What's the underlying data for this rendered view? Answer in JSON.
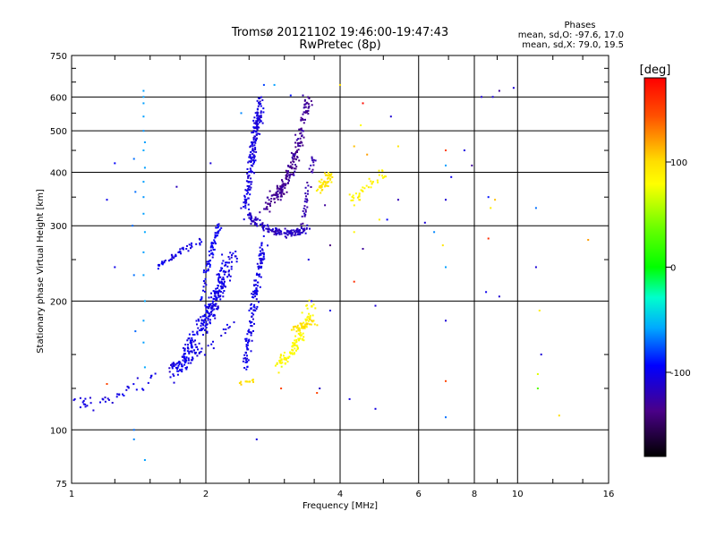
{
  "chart_data": {
    "type": "scatter",
    "title": "Tromsø 20121102 19:46:00-19:47:43",
    "subtitle": "RwPretec (8p)",
    "xlabel": "Frequency [MHz]",
    "ylabel": "Stationary phase Virtual Height [km]",
    "x_scale": "log",
    "y_scale": "log",
    "xlim": [
      1,
      16
    ],
    "ylim": [
      75,
      750
    ],
    "x_ticks": [
      1,
      2,
      4,
      6,
      8,
      10,
      16
    ],
    "x_tick_labels": [
      "1",
      "2",
      "4",
      "6",
      "8",
      "10",
      "16"
    ],
    "y_ticks": [
      75,
      100,
      200,
      300,
      400,
      500,
      600,
      750
    ],
    "y_tick_labels": [
      "75",
      "100",
      "200",
      "300",
      "400",
      "500",
      "600",
      "750"
    ],
    "grid": true,
    "stats": {
      "heading": "Phases",
      "line_o": "mean, sd,O: -97.6, 17.0",
      "line_x": "mean, sd,X:  79.0, 19.5"
    },
    "colorbar": {
      "label": "[deg]",
      "range": [
        -180,
        180
      ],
      "ticks": [
        100,
        0,
        -100
      ],
      "tick_labels": [
        "100",
        "0",
        "-100"
      ]
    },
    "traces": [
      {
        "f": [
          1.0,
          1.05,
          1.1,
          1.2,
          1.3,
          1.4,
          1.5,
          1.6,
          1.7,
          1.8,
          1.9,
          2.0,
          2.1,
          2.2,
          2.3
        ],
        "h": [
          116,
          115,
          116,
          117,
          120,
          125,
          130,
          135,
          140,
          145,
          150,
          155,
          160,
          168,
          180
        ],
        "n": 90,
        "sf": 0.03,
        "sh": 0.06,
        "phase": -105
      },
      {
        "f": [
          1.7,
          1.8,
          1.9,
          2.0,
          2.05,
          2.1,
          2.15,
          2.2,
          2.3
        ],
        "h": [
          135,
          150,
          165,
          180,
          190,
          200,
          215,
          230,
          255
        ],
        "n": 300,
        "sf": 0.05,
        "sh": 0.08,
        "phase": -102
      },
      {
        "f": [
          1.95,
          2.0,
          2.05,
          2.1,
          2.15
        ],
        "h": [
          200,
          230,
          260,
          285,
          300
        ],
        "n": 70,
        "sf": 0.02,
        "sh": 0.05,
        "phase": -100
      },
      {
        "f": [
          1.55,
          1.65,
          1.75,
          1.85,
          1.95
        ],
        "h": [
          240,
          250,
          260,
          268,
          275
        ],
        "n": 50,
        "sf": 0.015,
        "sh": 0.025,
        "phase": -102
      },
      {
        "f": [
          2.45,
          2.5,
          2.55,
          2.6,
          2.65,
          2.7
        ],
        "h": [
          140,
          165,
          190,
          220,
          245,
          270
        ],
        "n": 150,
        "sf": 0.025,
        "sh": 0.08,
        "phase": -103
      },
      {
        "f": [
          2.45,
          2.5,
          2.55,
          2.6,
          2.65
        ],
        "h": [
          330,
          380,
          440,
          510,
          580
        ],
        "n": 190,
        "sf": 0.025,
        "sh": 0.08,
        "phase": -106
      },
      {
        "f": [
          2.5,
          2.6,
          2.8,
          3.0,
          3.2,
          3.4
        ],
        "h": [
          320,
          305,
          292,
          288,
          290,
          295
        ],
        "n": 140,
        "sf": 0.035,
        "sh": 0.03,
        "phase": -115
      },
      {
        "f": [
          2.7,
          2.9,
          3.0,
          3.1,
          3.2,
          3.3,
          3.4
        ],
        "h": [
          330,
          355,
          375,
          400,
          450,
          520,
          600
        ],
        "n": 210,
        "sf": 0.035,
        "sh": 0.06,
        "phase": -132
      },
      {
        "f": [
          3.3,
          3.35,
          3.4,
          3.5
        ],
        "h": [
          300,
          340,
          380,
          440
        ],
        "n": 40,
        "sf": 0.02,
        "sh": 0.06,
        "phase": -125
      },
      {
        "f": [
          3.6,
          3.7,
          3.8
        ],
        "h": [
          360,
          380,
          395
        ],
        "n": 50,
        "sf": 0.03,
        "sh": 0.04,
        "phase": 95
      },
      {
        "f": [
          4.2,
          4.4,
          4.6,
          4.8,
          5.0
        ],
        "h": [
          340,
          355,
          370,
          385,
          400
        ],
        "n": 40,
        "sf": 0.035,
        "sh": 0.04,
        "phase": 88
      },
      {
        "f": [
          2.4,
          2.5,
          2.6
        ],
        "h": [
          128,
          130,
          131
        ],
        "n": 14,
        "sf": 0.02,
        "sh": 0.015,
        "phase": 95
      },
      {
        "f": [
          2.9,
          3.0,
          3.1,
          3.2,
          3.3,
          3.4,
          3.5
        ],
        "h": [
          140,
          145,
          150,
          160,
          170,
          185,
          200
        ],
        "n": 110,
        "sf": 0.03,
        "sh": 0.06,
        "phase": 82
      },
      {
        "f": [
          3.1,
          3.3,
          3.5
        ],
        "h": [
          170,
          175,
          180
        ],
        "n": 35,
        "sf": 0.03,
        "sh": 0.04,
        "phase": 98
      }
    ],
    "points": [
      {
        "f": 1.45,
        "h": 620,
        "phase": -60
      },
      {
        "f": 1.45,
        "h": 600,
        "phase": -60
      },
      {
        "f": 1.45,
        "h": 580,
        "phase": -60
      },
      {
        "f": 1.45,
        "h": 540,
        "phase": -60
      },
      {
        "f": 1.45,
        "h": 500,
        "phase": -62
      },
      {
        "f": 1.46,
        "h": 470,
        "phase": -60
      },
      {
        "f": 1.45,
        "h": 450,
        "phase": -58
      },
      {
        "f": 1.46,
        "h": 410,
        "phase": -60
      },
      {
        "f": 1.45,
        "h": 380,
        "phase": -60
      },
      {
        "f": 1.45,
        "h": 350,
        "phase": -62
      },
      {
        "f": 1.45,
        "h": 320,
        "phase": -60
      },
      {
        "f": 1.46,
        "h": 290,
        "phase": -58
      },
      {
        "f": 1.45,
        "h": 260,
        "phase": -60
      },
      {
        "f": 1.45,
        "h": 230,
        "phase": -60
      },
      {
        "f": 1.46,
        "h": 200,
        "phase": -58
      },
      {
        "f": 1.45,
        "h": 180,
        "phase": -60
      },
      {
        "f": 1.45,
        "h": 160,
        "phase": -60
      },
      {
        "f": 1.46,
        "h": 140,
        "phase": -58
      },
      {
        "f": 1.46,
        "h": 85,
        "phase": -60
      },
      {
        "f": 1.38,
        "h": 430,
        "phase": -70
      },
      {
        "f": 1.39,
        "h": 360,
        "phase": -70
      },
      {
        "f": 1.37,
        "h": 300,
        "phase": -72
      },
      {
        "f": 1.38,
        "h": 230,
        "phase": -70
      },
      {
        "f": 1.39,
        "h": 170,
        "phase": -72
      },
      {
        "f": 1.38,
        "h": 100,
        "phase": -70
      },
      {
        "f": 1.38,
        "h": 95,
        "phase": -65
      },
      {
        "f": 1.25,
        "h": 420,
        "phase": -95
      },
      {
        "f": 1.25,
        "h": 240,
        "phase": -102
      },
      {
        "f": 1.2,
        "h": 345,
        "phase": -100
      },
      {
        "f": 1.72,
        "h": 370,
        "phase": -118
      },
      {
        "f": 2.05,
        "h": 420,
        "phase": -108
      },
      {
        "f": 2.4,
        "h": 550,
        "phase": -65
      },
      {
        "f": 2.7,
        "h": 640,
        "phase": -80
      },
      {
        "f": 2.85,
        "h": 640,
        "phase": -60
      },
      {
        "f": 3.1,
        "h": 605,
        "phase": -90
      },
      {
        "f": 3.4,
        "h": 250,
        "phase": -106
      },
      {
        "f": 3.45,
        "h": 200,
        "phase": -100
      },
      {
        "f": 2.6,
        "h": 95,
        "phase": -104
      },
      {
        "f": 1.2,
        "h": 128,
        "phase": 150
      },
      {
        "f": 2.95,
        "h": 125,
        "phase": 150
      },
      {
        "f": 3.55,
        "h": 122,
        "phase": 150
      },
      {
        "f": 4.0,
        "h": 640,
        "phase": 100
      },
      {
        "f": 4.3,
        "h": 460,
        "phase": 110
      },
      {
        "f": 4.5,
        "h": 580,
        "phase": 175
      },
      {
        "f": 4.45,
        "h": 515,
        "phase": 80
      },
      {
        "f": 4.6,
        "h": 440,
        "phase": 120
      },
      {
        "f": 4.3,
        "h": 290,
        "phase": 85
      },
      {
        "f": 4.3,
        "h": 222,
        "phase": 160
      },
      {
        "f": 4.5,
        "h": 265,
        "phase": -130
      },
      {
        "f": 4.9,
        "h": 310,
        "phase": 90
      },
      {
        "f": 5.2,
        "h": 540,
        "phase": -110
      },
      {
        "f": 5.4,
        "h": 460,
        "phase": 95
      },
      {
        "f": 5.4,
        "h": 345,
        "phase": -120
      },
      {
        "f": 5.1,
        "h": 310,
        "phase": -95
      },
      {
        "f": 4.2,
        "h": 118,
        "phase": -105
      },
      {
        "f": 4.8,
        "h": 112,
        "phase": -105
      },
      {
        "f": 4.8,
        "h": 195,
        "phase": -110
      },
      {
        "f": 3.8,
        "h": 190,
        "phase": -105
      },
      {
        "f": 3.6,
        "h": 125,
        "phase": -115
      },
      {
        "f": 3.8,
        "h": 270,
        "phase": -140
      },
      {
        "f": 3.7,
        "h": 335,
        "phase": -130
      },
      {
        "f": 6.2,
        "h": 305,
        "phase": -108
      },
      {
        "f": 6.5,
        "h": 290,
        "phase": -65
      },
      {
        "f": 6.8,
        "h": 270,
        "phase": 95
      },
      {
        "f": 6.9,
        "h": 450,
        "phase": 150
      },
      {
        "f": 6.9,
        "h": 415,
        "phase": -60
      },
      {
        "f": 6.9,
        "h": 345,
        "phase": -110
      },
      {
        "f": 7.1,
        "h": 390,
        "phase": -100
      },
      {
        "f": 6.9,
        "h": 240,
        "phase": -60
      },
      {
        "f": 6.9,
        "h": 180,
        "phase": -108
      },
      {
        "f": 6.9,
        "h": 130,
        "phase": 150
      },
      {
        "f": 6.9,
        "h": 107,
        "phase": -70
      },
      {
        "f": 7.6,
        "h": 450,
        "phase": -105
      },
      {
        "f": 7.9,
        "h": 415,
        "phase": -130
      },
      {
        "f": 8.3,
        "h": 600,
        "phase": -110
      },
      {
        "f": 8.8,
        "h": 600,
        "phase": -108
      },
      {
        "f": 9.1,
        "h": 620,
        "phase": -130
      },
      {
        "f": 9.8,
        "h": 630,
        "phase": -110
      },
      {
        "f": 8.6,
        "h": 350,
        "phase": -90
      },
      {
        "f": 8.9,
        "h": 345,
        "phase": 110
      },
      {
        "f": 8.7,
        "h": 330,
        "phase": 90
      },
      {
        "f": 8.6,
        "h": 280,
        "phase": 160
      },
      {
        "f": 8.5,
        "h": 210,
        "phase": -100
      },
      {
        "f": 9.1,
        "h": 205,
        "phase": -110
      },
      {
        "f": 11.0,
        "h": 330,
        "phase": -70
      },
      {
        "f": 11.0,
        "h": 240,
        "phase": -108
      },
      {
        "f": 11.2,
        "h": 190,
        "phase": 90
      },
      {
        "f": 11.3,
        "h": 150,
        "phase": -108
      },
      {
        "f": 11.1,
        "h": 135,
        "phase": 70
      },
      {
        "f": 11.1,
        "h": 125,
        "phase": 30
      },
      {
        "f": 12.4,
        "h": 108,
        "phase": 100
      },
      {
        "f": 14.4,
        "h": 278,
        "phase": 120
      }
    ]
  }
}
